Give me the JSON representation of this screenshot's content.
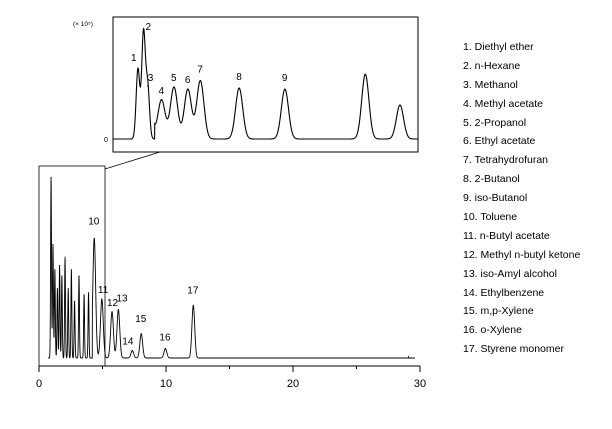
{
  "chart_data": {
    "type": "line",
    "title": "",
    "xlabel": "",
    "ylabel": "",
    "xlim": [
      0,
      30
    ],
    "x_ticks": [
      "0",
      "10",
      "20",
      "30"
    ],
    "grid": false,
    "legend_placement": "right",
    "main_peaks": [
      {
        "label": "",
        "x": 0.95,
        "y": 0.86
      },
      {
        "label": "",
        "x": 1.1,
        "y": 0.54
      },
      {
        "label": "",
        "x": 1.25,
        "y": 0.42
      },
      {
        "label": "",
        "x": 1.45,
        "y": 0.33
      },
      {
        "label": "",
        "x": 1.62,
        "y": 0.44
      },
      {
        "label": "",
        "x": 1.8,
        "y": 0.39
      },
      {
        "label": "",
        "x": 2.05,
        "y": 0.48
      },
      {
        "label": "",
        "x": 2.3,
        "y": 0.33
      },
      {
        "label": "",
        "x": 2.55,
        "y": 0.42
      },
      {
        "label": "",
        "x": 2.8,
        "y": 0.27
      },
      {
        "label": "",
        "x": 3.15,
        "y": 0.39
      },
      {
        "label": "",
        "x": 3.55,
        "y": 0.3
      },
      {
        "label": "",
        "x": 3.9,
        "y": 0.31
      },
      {
        "label": "10",
        "x": 4.35,
        "y": 0.57
      },
      {
        "label": "11",
        "x": 4.95,
        "y": 0.28
      },
      {
        "label": "12",
        "x": 5.75,
        "y": 0.22
      },
      {
        "label": "13",
        "x": 6.25,
        "y": 0.23
      },
      {
        "label": "14",
        "x": 7.35,
        "y": 0.035
      },
      {
        "label": "15",
        "x": 8.05,
        "y": 0.115
      },
      {
        "label": "16",
        "x": 9.95,
        "y": 0.045
      },
      {
        "label": "17",
        "x": 12.15,
        "y": 0.25
      }
    ],
    "inset": {
      "y_tick": "0",
      "y_scale_label": "(× 10⁵)",
      "peaks": [
        {
          "label": "1",
          "x": 9.8,
          "y": 0.66
        },
        {
          "label": "2",
          "x": 10.2,
          "y": 1.0
        },
        {
          "label": "3",
          "x": 10.5,
          "y": 0.5
        },
        {
          "label": "4",
          "x": 11.5,
          "y": 0.37
        },
        {
          "label": "5",
          "x": 12.4,
          "y": 0.49
        },
        {
          "label": "6",
          "x": 13.4,
          "y": 0.47
        },
        {
          "label": "7",
          "x": 14.3,
          "y": 0.55
        },
        {
          "label": "8",
          "x": 17.1,
          "y": 0.48
        },
        {
          "label": "9",
          "x": 20.4,
          "y": 0.47
        },
        {
          "label": "",
          "x": 26.2,
          "y": 0.61
        },
        {
          "label": "",
          "x": 28.7,
          "y": 0.32
        }
      ]
    },
    "legend": [
      "1. Diethyl ether",
      "2. n-Hexane",
      "3. Methanol",
      "4. Methyl acetate",
      "5. 2-Propanol",
      "6. Ethyl acetate",
      "7. Tetrahydrofuran",
      "8. 2-Butanol",
      "9. iso-Butanol",
      "10. Toluene",
      "11. n-Butyl acetate",
      "12. Methyl n-butyl ketone",
      "13. iso-Amyl alcohol",
      "14. Ethylbenzene",
      "15. m,p-Xylene",
      "16. o-Xylene",
      "17. Styrene monomer"
    ]
  }
}
